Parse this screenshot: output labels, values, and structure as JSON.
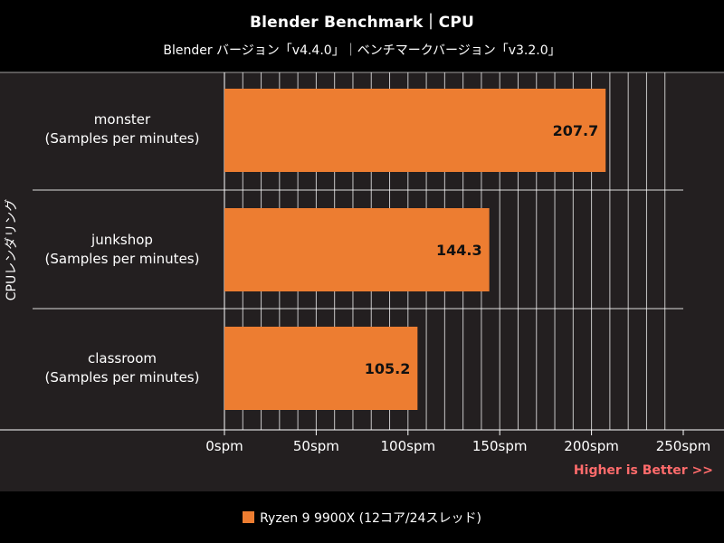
{
  "header": {
    "title": "Blender Benchmark｜CPU",
    "subtitle": "Blender バージョン「v4.4.0」｜ベンチマークバージョン「v3.2.0」"
  },
  "ylabel": "CPUレンダリング",
  "note": "Higher is Better >>",
  "legend": {
    "label": "Ryzen 9 9900X (12コア/24スレッド)"
  },
  "colors": {
    "bar": "#ed7d31",
    "panel": "#231f20",
    "grid": "#ffffff",
    "note": "#ff6b6b"
  },
  "chart_data": {
    "type": "bar",
    "orientation": "horizontal",
    "categories": [
      {
        "name": "monster",
        "unit": "(Samples per minutes)"
      },
      {
        "name": "junkshop",
        "unit": "(Samples per minutes)"
      },
      {
        "name": "classroom",
        "unit": "(Samples per minutes)"
      }
    ],
    "series": [
      {
        "name": "Ryzen 9 9900X (12コア/24スレッド)",
        "values": [
          207.7,
          144.3,
          105.2
        ],
        "labels": [
          "207.7",
          "144.3",
          "105.2"
        ]
      }
    ],
    "xlim": [
      0,
      250
    ],
    "ticks": [
      {
        "value": 0,
        "label": "0spm"
      },
      {
        "value": 50,
        "label": "50spm"
      },
      {
        "value": 100,
        "label": "100spm"
      },
      {
        "value": 150,
        "label": "150spm"
      },
      {
        "value": 200,
        "label": "200spm"
      },
      {
        "value": 250,
        "label": "250spm"
      }
    ],
    "minor_grid_step": 10,
    "grid": true,
    "legend_position": "bottom"
  }
}
